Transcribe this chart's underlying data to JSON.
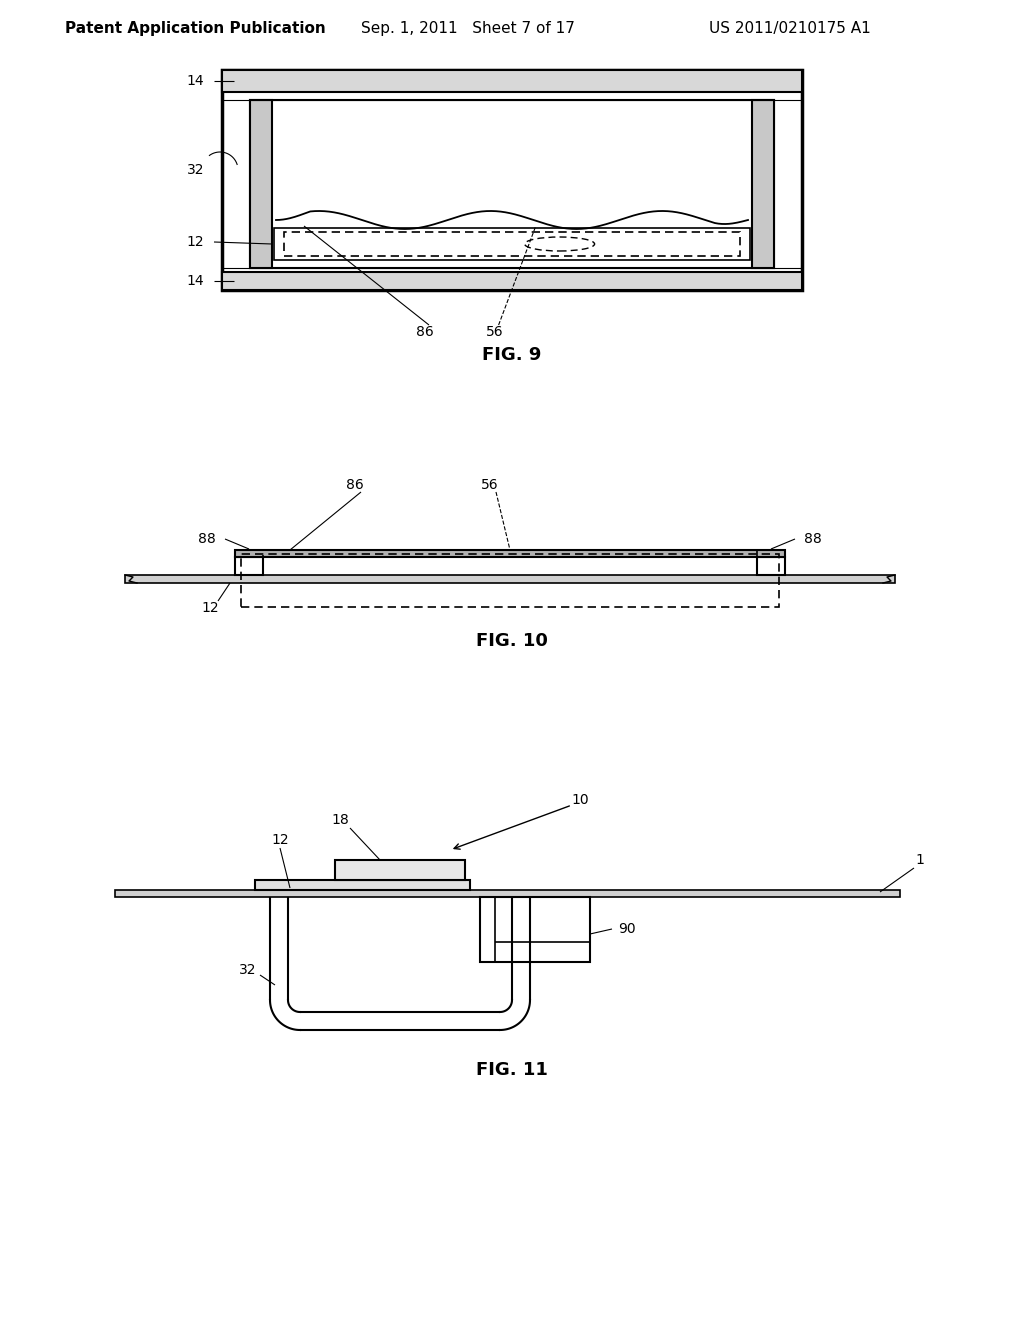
{
  "bg_color": "#ffffff",
  "header_left": "Patent Application Publication",
  "header_mid": "Sep. 1, 2011   Sheet 7 of 17",
  "header_right": "US 2011/0210175 A1",
  "fig9_label": "FIG. 9",
  "fig10_label": "FIG. 10",
  "fig11_label": "FIG. 11"
}
